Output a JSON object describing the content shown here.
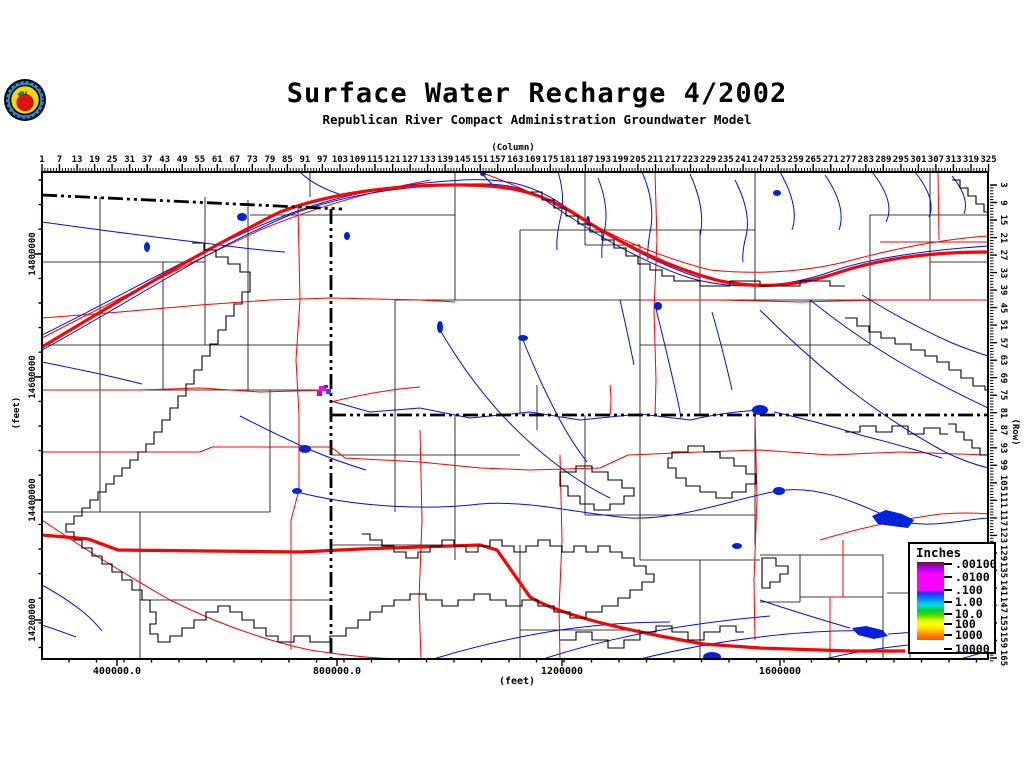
{
  "header": {
    "title": "Surface Water Recharge 4/2002",
    "subtitle": "Republican River Compact Administration Groundwater Model"
  },
  "logo": {
    "description": "apple-seal-emblem"
  },
  "axes": {
    "column": {
      "label": "(Column)",
      "ticks": [
        "1",
        "7",
        "13",
        "19",
        "25",
        "31",
        "37",
        "43",
        "49",
        "55",
        "61",
        "67",
        "73",
        "79",
        "85",
        "91",
        "97",
        "103",
        "109",
        "115",
        "121",
        "127",
        "133",
        "139",
        "145",
        "151",
        "157",
        "163",
        "169",
        "175",
        "181",
        "187",
        "193",
        "199",
        "205",
        "211",
        "217",
        "223",
        "229",
        "235",
        "241",
        "247",
        "253",
        "259",
        "265",
        "271",
        "277",
        "283",
        "289",
        "295",
        "301",
        "307",
        "313",
        "319",
        "325"
      ]
    },
    "row": {
      "label": "(Row)",
      "ticks": [
        "3",
        "9",
        "15",
        "21",
        "27",
        "33",
        "39",
        "45",
        "51",
        "57",
        "63",
        "69",
        "75",
        "81",
        "87",
        "93",
        "99",
        "105",
        "111",
        "117",
        "123",
        "129",
        "135",
        "141",
        "147",
        "153",
        "159",
        "165"
      ]
    },
    "x_feet": {
      "label": "(feet)",
      "ticks": [
        "400000.0",
        "800000.0",
        "1200000",
        "1600000"
      ]
    },
    "y_feet": {
      "label": "(feet)",
      "ticks": [
        "14800000",
        "14600000",
        "14400000",
        "14200000"
      ]
    }
  },
  "legend": {
    "title": "Inches",
    "entries": [
      ".00100",
      ".0100",
      ".100",
      "1.00",
      "10.0",
      "100",
      "1000",
      "10000"
    ]
  },
  "colors": {
    "river": "#0011dd",
    "lake": "#0022dd",
    "road": "#ff0000",
    "boundary": "#000000",
    "recharge_high": "#ff00ff",
    "recharge_low": "#ff5500"
  },
  "map": {
    "features": [
      "rivers",
      "lakes",
      "county-boundaries",
      "state-boundaries",
      "roads",
      "highways",
      "model-boundary",
      "recharge-cells"
    ]
  }
}
